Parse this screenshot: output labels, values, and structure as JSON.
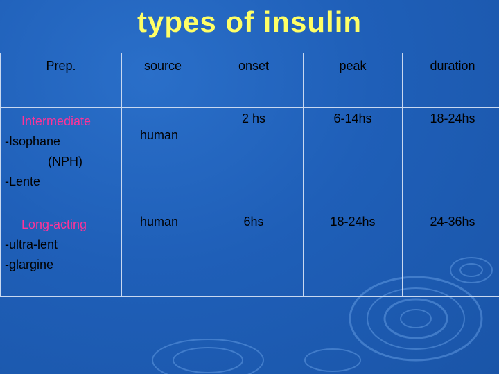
{
  "title": "types of insulin",
  "table": {
    "headers": {
      "prep": "Prep.",
      "source": "source",
      "onset": "onset",
      "peak": "peak",
      "duration": "duration"
    },
    "rows": [
      {
        "category": "Intermediate",
        "items": [
          "-Isophane",
          "(NPH)",
          "-Lente"
        ],
        "source": "human",
        "onset": "2 hs",
        "peak": "6-14hs",
        "duration": "18-24hs"
      },
      {
        "category": "Long-acting",
        "items": [
          "-ultra-lent",
          "-glargine"
        ],
        "source": "human",
        "onset": "6hs",
        "peak": "18-24hs",
        "duration": "24-36hs"
      }
    ]
  },
  "colors": {
    "background": "#1f5fb8",
    "title": "#ffff66",
    "header_accent": "#ff33cc",
    "category": "#ff3399"
  }
}
